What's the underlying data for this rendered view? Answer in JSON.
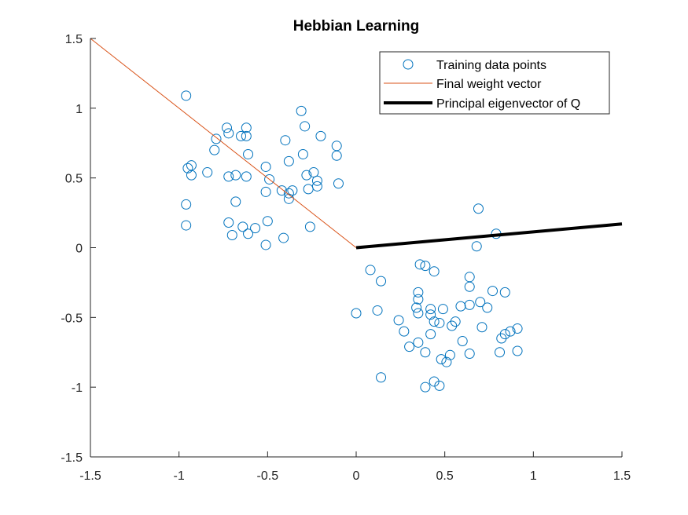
{
  "chart_data": {
    "type": "scatter",
    "title": "Hebbian Learning",
    "xlabel": "",
    "ylabel": "",
    "xlim": [
      -1.5,
      1.5
    ],
    "ylim": [
      -1.5,
      1.5
    ],
    "xticks": [
      -1.5,
      -1,
      -0.5,
      0,
      0.5,
      1,
      1.5
    ],
    "yticks": [
      -1.5,
      -1,
      -0.5,
      0,
      0.5,
      1,
      1.5
    ],
    "xtick_labels": [
      "-1.5",
      "-1",
      "-0.5",
      "0",
      "0.5",
      "1",
      "1.5"
    ],
    "ytick_labels": [
      "-1.5",
      "-1",
      "-0.5",
      "0",
      "0.5",
      "1",
      "1.5"
    ],
    "grid": false,
    "legend_position": "top-right",
    "series": [
      {
        "name": "Training data points",
        "kind": "scatter",
        "marker": "circle",
        "color": "#0072BD",
        "points": [
          [
            -0.96,
            1.09
          ],
          [
            -0.31,
            0.98
          ],
          [
            -0.73,
            0.86
          ],
          [
            -0.62,
            0.86
          ],
          [
            -0.72,
            0.82
          ],
          [
            -0.65,
            0.8
          ],
          [
            -0.62,
            0.8
          ],
          [
            -0.29,
            0.87
          ],
          [
            -0.79,
            0.78
          ],
          [
            -0.4,
            0.77
          ],
          [
            -0.2,
            0.8
          ],
          [
            -0.11,
            0.73
          ],
          [
            -0.8,
            0.7
          ],
          [
            -0.61,
            0.67
          ],
          [
            -0.3,
            0.67
          ],
          [
            -0.11,
            0.66
          ],
          [
            -0.93,
            0.59
          ],
          [
            -0.95,
            0.57
          ],
          [
            -0.51,
            0.58
          ],
          [
            -0.38,
            0.62
          ],
          [
            -0.84,
            0.54
          ],
          [
            -0.93,
            0.52
          ],
          [
            -0.72,
            0.51
          ],
          [
            -0.68,
            0.52
          ],
          [
            -0.62,
            0.51
          ],
          [
            -0.49,
            0.49
          ],
          [
            -0.28,
            0.52
          ],
          [
            -0.24,
            0.54
          ],
          [
            -0.22,
            0.48
          ],
          [
            -0.1,
            0.46
          ],
          [
            -0.27,
            0.42
          ],
          [
            -0.22,
            0.44
          ],
          [
            -0.36,
            0.41
          ],
          [
            -0.42,
            0.41
          ],
          [
            -0.38,
            0.39
          ],
          [
            -0.51,
            0.4
          ],
          [
            -0.38,
            0.35
          ],
          [
            -0.96,
            0.31
          ],
          [
            -0.68,
            0.33
          ],
          [
            -0.96,
            0.16
          ],
          [
            -0.72,
            0.18
          ],
          [
            -0.64,
            0.15
          ],
          [
            -0.57,
            0.14
          ],
          [
            -0.5,
            0.19
          ],
          [
            -0.61,
            0.1
          ],
          [
            -0.7,
            0.09
          ],
          [
            -0.41,
            0.07
          ],
          [
            -0.26,
            0.15
          ],
          [
            -0.51,
            0.02
          ],
          [
            0.69,
            0.28
          ],
          [
            0.79,
            0.1
          ],
          [
            0.68,
            0.01
          ],
          [
            0.08,
            -0.16
          ],
          [
            0.14,
            -0.24
          ],
          [
            0.36,
            -0.12
          ],
          [
            0.39,
            -0.13
          ],
          [
            0.44,
            -0.17
          ],
          [
            0.64,
            -0.21
          ],
          [
            0.64,
            -0.28
          ],
          [
            0.77,
            -0.31
          ],
          [
            0.84,
            -0.32
          ],
          [
            0.35,
            -0.32
          ],
          [
            0.35,
            -0.37
          ],
          [
            0.59,
            -0.42
          ],
          [
            0.64,
            -0.41
          ],
          [
            0.7,
            -0.39
          ],
          [
            0.74,
            -0.43
          ],
          [
            0.34,
            -0.43
          ],
          [
            0.42,
            -0.44
          ],
          [
            0.49,
            -0.44
          ],
          [
            0.0,
            -0.47
          ],
          [
            0.12,
            -0.45
          ],
          [
            0.35,
            -0.47
          ],
          [
            0.42,
            -0.48
          ],
          [
            0.44,
            -0.53
          ],
          [
            0.47,
            -0.54
          ],
          [
            0.56,
            -0.53
          ],
          [
            0.54,
            -0.56
          ],
          [
            0.24,
            -0.52
          ],
          [
            0.27,
            -0.6
          ],
          [
            0.42,
            -0.62
          ],
          [
            0.71,
            -0.57
          ],
          [
            0.84,
            -0.62
          ],
          [
            0.87,
            -0.6
          ],
          [
            0.91,
            -0.58
          ],
          [
            0.82,
            -0.65
          ],
          [
            0.6,
            -0.67
          ],
          [
            0.35,
            -0.68
          ],
          [
            0.3,
            -0.71
          ],
          [
            0.39,
            -0.75
          ],
          [
            0.64,
            -0.76
          ],
          [
            0.81,
            -0.75
          ],
          [
            0.91,
            -0.74
          ],
          [
            0.53,
            -0.77
          ],
          [
            0.48,
            -0.8
          ],
          [
            0.51,
            -0.82
          ],
          [
            0.14,
            -0.93
          ],
          [
            0.44,
            -0.96
          ],
          [
            0.39,
            -1.0
          ],
          [
            0.47,
            -0.99
          ]
        ]
      },
      {
        "name": "Final weight vector",
        "kind": "line",
        "color": "#D95319",
        "points": [
          [
            0,
            0
          ],
          [
            -1.5,
            1.5
          ]
        ]
      },
      {
        "name": "Principal eigenvector of Q",
        "kind": "line",
        "color": "#000000",
        "points": [
          [
            0,
            0
          ],
          [
            1.5,
            0.17
          ]
        ]
      }
    ]
  }
}
